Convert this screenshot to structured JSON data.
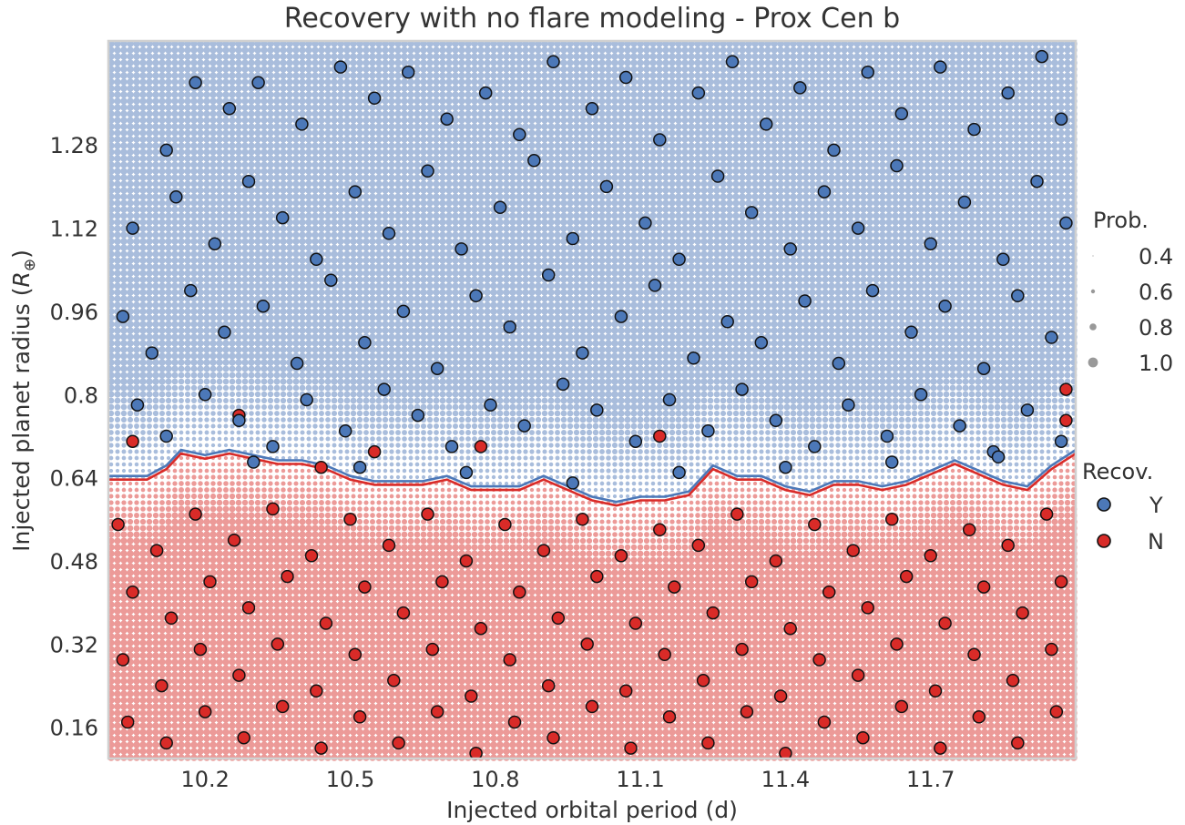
{
  "chart_data": {
    "type": "scatter",
    "title": "Recovery with no flare modeling - Prox Cen b",
    "xlabel": "Injected orbital period (d)",
    "ylabel_main": "Injected planet radius (",
    "ylabel_sym": "R",
    "ylabel_sub": "⊕",
    "ylabel_end": ")",
    "xlim": [
      10.0,
      12.0
    ],
    "ylim": [
      0.1,
      1.48
    ],
    "xticks": [
      10.2,
      10.5,
      10.8,
      11.1,
      11.4,
      11.7
    ],
    "xtick_labels": [
      "10.2",
      "10.5",
      "10.8",
      "11.1",
      "11.4",
      "11.7"
    ],
    "yticks": [
      0.16,
      0.32,
      0.48,
      0.64,
      0.8,
      0.96,
      1.12,
      1.28
    ],
    "ytick_labels": [
      "0.16",
      "0.32",
      "0.48",
      "0.64",
      "0.8",
      "0.96",
      "1.12",
      "1.28"
    ],
    "grid": false,
    "colors": {
      "recovered": "#4c78b8",
      "not_recovered": "#d92b28",
      "bg_recovered": "#a9bddc",
      "bg_not_recovered": "#ec9a98",
      "contour_blue": "#4c78b8",
      "contour_red": "#d92b28",
      "frame": "#d0d0d0"
    },
    "boundary": {
      "x": [
        10.0,
        10.08,
        10.12,
        10.15,
        10.2,
        10.25,
        10.3,
        10.35,
        10.4,
        10.45,
        10.5,
        10.55,
        10.6,
        10.65,
        10.7,
        10.75,
        10.8,
        10.85,
        10.9,
        10.95,
        11.0,
        11.05,
        11.1,
        11.15,
        11.2,
        11.25,
        11.3,
        11.35,
        11.4,
        11.45,
        11.5,
        11.55,
        11.6,
        11.65,
        11.7,
        11.75,
        11.8,
        11.85,
        11.9,
        11.95,
        12.0
      ],
      "y": [
        0.64,
        0.64,
        0.66,
        0.69,
        0.68,
        0.69,
        0.68,
        0.67,
        0.67,
        0.66,
        0.64,
        0.63,
        0.63,
        0.63,
        0.64,
        0.62,
        0.62,
        0.62,
        0.64,
        0.62,
        0.6,
        0.59,
        0.6,
        0.6,
        0.61,
        0.66,
        0.64,
        0.64,
        0.62,
        0.61,
        0.63,
        0.63,
        0.62,
        0.63,
        0.65,
        0.67,
        0.65,
        0.63,
        0.62,
        0.66,
        0.69
      ]
    },
    "legend_prob": {
      "title": "Prob.",
      "entries": [
        "0.4",
        "0.6",
        "0.8",
        "1.0"
      ],
      "values": [
        0.4,
        0.6,
        0.8,
        1.0
      ]
    },
    "legend_recov": {
      "title": "Recov.",
      "entries": [
        "Y",
        "N"
      ]
    },
    "injected_points_note": "",
    "recovered_points": [
      [
        10.12,
        1.27
      ],
      [
        10.18,
        1.4
      ],
      [
        10.25,
        1.35
      ],
      [
        10.31,
        1.4
      ],
      [
        10.4,
        1.32
      ],
      [
        10.48,
        1.43
      ],
      [
        10.55,
        1.37
      ],
      [
        10.62,
        1.42
      ],
      [
        10.7,
        1.33
      ],
      [
        10.78,
        1.38
      ],
      [
        10.85,
        1.3
      ],
      [
        10.92,
        1.44
      ],
      [
        11.0,
        1.35
      ],
      [
        11.07,
        1.41
      ],
      [
        11.14,
        1.29
      ],
      [
        11.22,
        1.38
      ],
      [
        11.29,
        1.44
      ],
      [
        11.36,
        1.32
      ],
      [
        11.43,
        1.39
      ],
      [
        11.5,
        1.27
      ],
      [
        11.57,
        1.42
      ],
      [
        11.64,
        1.34
      ],
      [
        11.72,
        1.43
      ],
      [
        11.79,
        1.31
      ],
      [
        11.86,
        1.38
      ],
      [
        11.93,
        1.45
      ],
      [
        11.97,
        1.33
      ],
      [
        10.05,
        1.12
      ],
      [
        10.14,
        1.18
      ],
      [
        10.22,
        1.09
      ],
      [
        10.29,
        1.21
      ],
      [
        10.36,
        1.14
      ],
      [
        10.43,
        1.06
      ],
      [
        10.51,
        1.19
      ],
      [
        10.58,
        1.11
      ],
      [
        10.66,
        1.23
      ],
      [
        10.73,
        1.08
      ],
      [
        10.81,
        1.16
      ],
      [
        10.88,
        1.25
      ],
      [
        10.96,
        1.1
      ],
      [
        11.03,
        1.2
      ],
      [
        11.11,
        1.13
      ],
      [
        11.18,
        1.06
      ],
      [
        11.26,
        1.22
      ],
      [
        11.33,
        1.15
      ],
      [
        11.41,
        1.08
      ],
      [
        11.48,
        1.19
      ],
      [
        11.55,
        1.12
      ],
      [
        11.63,
        1.24
      ],
      [
        11.7,
        1.09
      ],
      [
        11.77,
        1.17
      ],
      [
        11.85,
        1.06
      ],
      [
        11.92,
        1.21
      ],
      [
        11.98,
        1.13
      ],
      [
        10.03,
        0.95
      ],
      [
        10.09,
        0.88
      ],
      [
        10.17,
        1.0
      ],
      [
        10.24,
        0.92
      ],
      [
        10.32,
        0.97
      ],
      [
        10.39,
        0.86
      ],
      [
        10.46,
        1.02
      ],
      [
        10.53,
        0.9
      ],
      [
        10.61,
        0.96
      ],
      [
        10.68,
        0.85
      ],
      [
        10.76,
        0.99
      ],
      [
        10.83,
        0.93
      ],
      [
        10.91,
        1.03
      ],
      [
        10.98,
        0.88
      ],
      [
        11.06,
        0.95
      ],
      [
        11.13,
        1.01
      ],
      [
        11.21,
        0.87
      ],
      [
        11.28,
        0.94
      ],
      [
        11.35,
        0.9
      ],
      [
        11.44,
        0.98
      ],
      [
        11.51,
        0.86
      ],
      [
        11.58,
        1.0
      ],
      [
        11.66,
        0.92
      ],
      [
        11.73,
        0.97
      ],
      [
        11.81,
        0.85
      ],
      [
        11.88,
        0.99
      ],
      [
        11.95,
        0.91
      ],
      [
        10.06,
        0.78
      ],
      [
        10.12,
        0.72
      ],
      [
        10.2,
        0.8
      ],
      [
        10.27,
        0.75
      ],
      [
        10.34,
        0.7
      ],
      [
        10.41,
        0.79
      ],
      [
        10.49,
        0.73
      ],
      [
        10.57,
        0.81
      ],
      [
        10.64,
        0.76
      ],
      [
        10.71,
        0.7
      ],
      [
        10.79,
        0.78
      ],
      [
        10.86,
        0.74
      ],
      [
        10.94,
        0.82
      ],
      [
        11.01,
        0.77
      ],
      [
        11.09,
        0.71
      ],
      [
        11.16,
        0.79
      ],
      [
        11.24,
        0.73
      ],
      [
        11.31,
        0.81
      ],
      [
        11.38,
        0.75
      ],
      [
        11.46,
        0.7
      ],
      [
        11.53,
        0.78
      ],
      [
        11.61,
        0.72
      ],
      [
        11.68,
        0.8
      ],
      [
        11.76,
        0.74
      ],
      [
        11.83,
        0.69
      ],
      [
        11.9,
        0.77
      ],
      [
        11.97,
        0.71
      ],
      [
        10.3,
        0.67
      ],
      [
        10.52,
        0.66
      ],
      [
        10.74,
        0.65
      ],
      [
        10.96,
        0.63
      ],
      [
        11.18,
        0.65
      ],
      [
        11.4,
        0.66
      ],
      [
        11.62,
        0.67
      ],
      [
        11.84,
        0.68
      ]
    ],
    "not_recovered_points": [
      [
        10.02,
        0.55
      ],
      [
        10.1,
        0.5
      ],
      [
        10.18,
        0.57
      ],
      [
        10.26,
        0.52
      ],
      [
        10.34,
        0.58
      ],
      [
        10.42,
        0.49
      ],
      [
        10.5,
        0.56
      ],
      [
        10.58,
        0.51
      ],
      [
        10.66,
        0.57
      ],
      [
        10.74,
        0.48
      ],
      [
        10.82,
        0.55
      ],
      [
        10.9,
        0.5
      ],
      [
        10.98,
        0.56
      ],
      [
        11.06,
        0.49
      ],
      [
        11.14,
        0.54
      ],
      [
        11.22,
        0.51
      ],
      [
        11.3,
        0.57
      ],
      [
        11.38,
        0.48
      ],
      [
        11.46,
        0.55
      ],
      [
        11.54,
        0.5
      ],
      [
        11.62,
        0.56
      ],
      [
        11.7,
        0.49
      ],
      [
        11.78,
        0.54
      ],
      [
        11.86,
        0.51
      ],
      [
        11.94,
        0.57
      ],
      [
        10.05,
        0.42
      ],
      [
        10.13,
        0.37
      ],
      [
        10.21,
        0.44
      ],
      [
        10.29,
        0.39
      ],
      [
        10.37,
        0.45
      ],
      [
        10.45,
        0.36
      ],
      [
        10.53,
        0.43
      ],
      [
        10.61,
        0.38
      ],
      [
        10.69,
        0.44
      ],
      [
        10.77,
        0.35
      ],
      [
        10.85,
        0.42
      ],
      [
        10.93,
        0.37
      ],
      [
        11.01,
        0.45
      ],
      [
        11.09,
        0.36
      ],
      [
        11.17,
        0.43
      ],
      [
        11.25,
        0.38
      ],
      [
        11.33,
        0.44
      ],
      [
        11.41,
        0.35
      ],
      [
        11.49,
        0.42
      ],
      [
        11.57,
        0.39
      ],
      [
        11.65,
        0.45
      ],
      [
        11.73,
        0.36
      ],
      [
        11.81,
        0.43
      ],
      [
        11.89,
        0.38
      ],
      [
        11.97,
        0.44
      ],
      [
        10.03,
        0.29
      ],
      [
        10.11,
        0.24
      ],
      [
        10.19,
        0.31
      ],
      [
        10.27,
        0.26
      ],
      [
        10.35,
        0.32
      ],
      [
        10.43,
        0.23
      ],
      [
        10.51,
        0.3
      ],
      [
        10.59,
        0.25
      ],
      [
        10.67,
        0.31
      ],
      [
        10.75,
        0.22
      ],
      [
        10.83,
        0.29
      ],
      [
        10.91,
        0.24
      ],
      [
        10.99,
        0.32
      ],
      [
        11.07,
        0.23
      ],
      [
        11.15,
        0.3
      ],
      [
        11.23,
        0.25
      ],
      [
        11.31,
        0.31
      ],
      [
        11.39,
        0.22
      ],
      [
        11.47,
        0.29
      ],
      [
        11.55,
        0.26
      ],
      [
        11.63,
        0.32
      ],
      [
        11.71,
        0.23
      ],
      [
        11.79,
        0.3
      ],
      [
        11.87,
        0.25
      ],
      [
        11.95,
        0.31
      ],
      [
        10.04,
        0.17
      ],
      [
        10.12,
        0.13
      ],
      [
        10.2,
        0.19
      ],
      [
        10.28,
        0.14
      ],
      [
        10.36,
        0.2
      ],
      [
        10.44,
        0.12
      ],
      [
        10.52,
        0.18
      ],
      [
        10.6,
        0.13
      ],
      [
        10.68,
        0.19
      ],
      [
        10.76,
        0.11
      ],
      [
        10.84,
        0.17
      ],
      [
        10.92,
        0.14
      ],
      [
        11.0,
        0.2
      ],
      [
        11.08,
        0.12
      ],
      [
        11.16,
        0.18
      ],
      [
        11.24,
        0.13
      ],
      [
        11.32,
        0.19
      ],
      [
        11.4,
        0.11
      ],
      [
        11.48,
        0.17
      ],
      [
        11.56,
        0.14
      ],
      [
        11.64,
        0.2
      ],
      [
        11.72,
        0.12
      ],
      [
        11.8,
        0.18
      ],
      [
        11.88,
        0.13
      ],
      [
        11.96,
        0.19
      ],
      [
        10.27,
        0.76
      ],
      [
        10.55,
        0.69
      ],
      [
        10.77,
        0.7
      ],
      [
        11.14,
        0.72
      ],
      [
        11.98,
        0.81
      ],
      [
        11.98,
        0.75
      ],
      [
        10.05,
        0.71
      ],
      [
        10.44,
        0.66
      ]
    ]
  }
}
